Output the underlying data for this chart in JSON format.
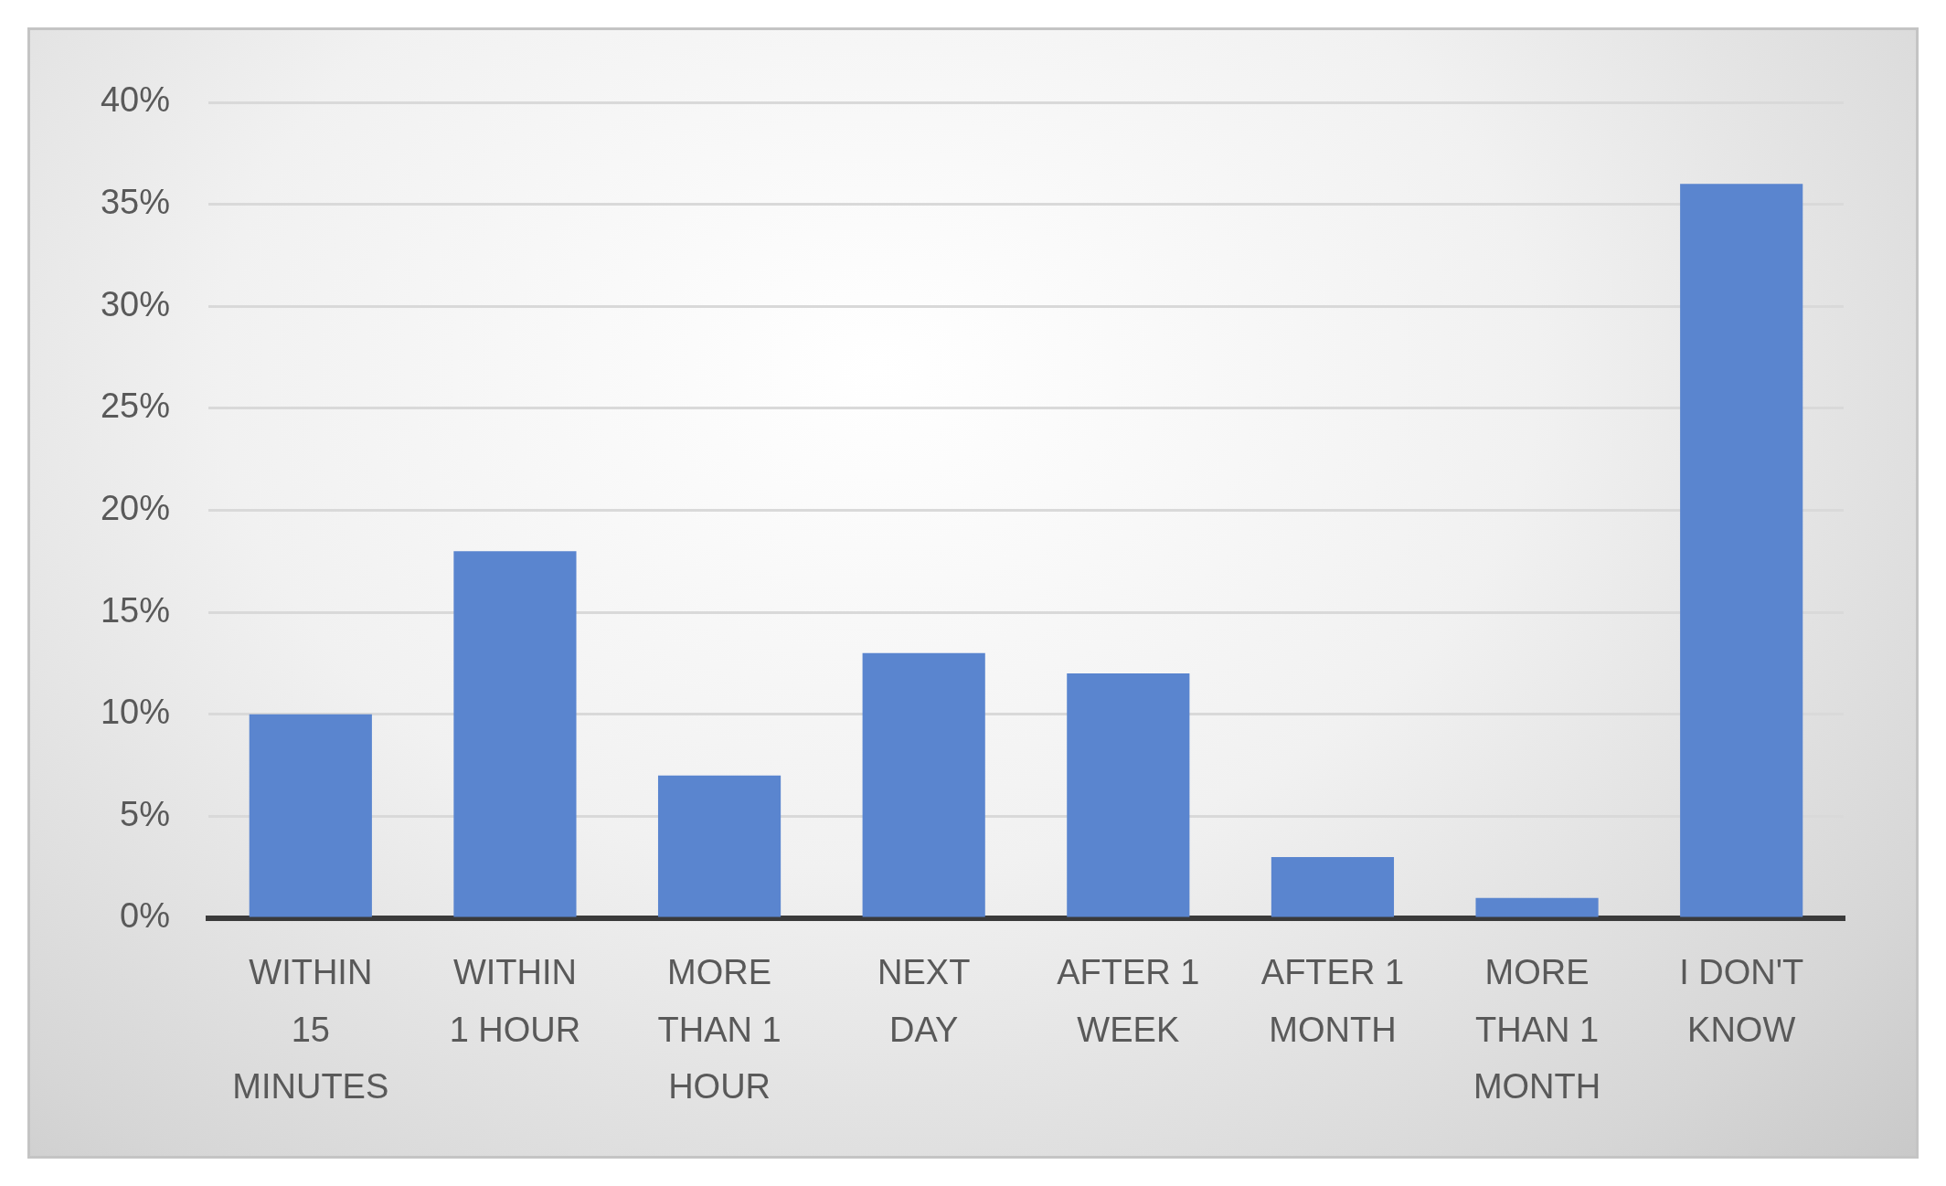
{
  "chart_data": {
    "type": "bar",
    "categories": [
      "WITHIN\n15\nMINUTES",
      "WITHIN\n1 HOUR",
      "MORE\nTHAN 1\nHOUR",
      "NEXT\nDAY",
      "AFTER 1\nWEEK",
      "AFTER 1\nMONTH",
      "MORE\nTHAN 1\nMONTH",
      "I DON'T\nKNOW"
    ],
    "values": [
      10,
      18,
      7,
      13,
      12,
      3,
      1,
      36
    ],
    "color": "#5a85cf",
    "ylim": [
      0,
      40
    ],
    "yticks": [
      {
        "value": 0,
        "label": "0%"
      },
      {
        "value": 5,
        "label": "5%"
      },
      {
        "value": 10,
        "label": "10%"
      },
      {
        "value": 15,
        "label": "15%"
      },
      {
        "value": 20,
        "label": "20%"
      },
      {
        "value": 25,
        "label": "25%"
      },
      {
        "value": 30,
        "label": "30%"
      },
      {
        "value": 35,
        "label": "35%"
      },
      {
        "value": 40,
        "label": "40%"
      }
    ],
    "grid": "y"
  }
}
